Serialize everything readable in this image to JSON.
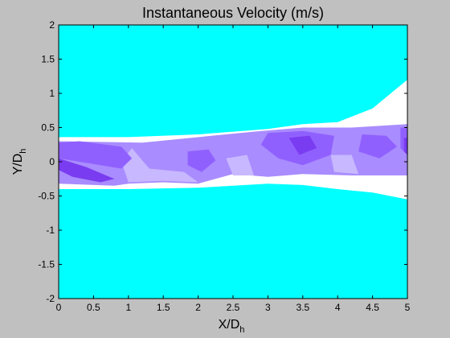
{
  "chart_data": {
    "type": "heatmap",
    "title": "Instantaneous Velocity (m/s)",
    "xlabel": {
      "main": "X/D",
      "sub": "h"
    },
    "ylabel": {
      "main": "Y/D",
      "sub": "h"
    },
    "xlim": [
      0,
      5
    ],
    "ylim": [
      -2,
      2
    ],
    "xticks": [
      0,
      0.5,
      1,
      1.5,
      2,
      2.5,
      3,
      3.5,
      4,
      4.5,
      5
    ],
    "xtick_labels": [
      "0",
      "0.5",
      "1",
      "1.5",
      "2",
      "2.5",
      "3",
      "3.5",
      "4",
      "4.5",
      "5"
    ],
    "yticks": [
      -2,
      -1.5,
      -1,
      -0.5,
      0,
      0.5,
      1,
      1.5,
      2
    ],
    "ytick_labels": [
      "-2",
      "-1.5",
      "-1",
      "-0.5",
      "0",
      "0.5",
      "1",
      "1.5",
      "2"
    ],
    "grid": false,
    "colorbar": false,
    "colors": {
      "background": "#00ffff",
      "jet_edge": "#ffffff",
      "light_lavender": "#c8b8ff",
      "lavender": "#a98cff",
      "violet": "#9060ff",
      "deep_violet": "#7a3cf0",
      "figure_bg": "#c0c0c0"
    },
    "regions": {
      "jet_upper_edge": [
        [
          0,
          0.36
        ],
        [
          1,
          0.36
        ],
        [
          2,
          0.4
        ],
        [
          3,
          0.48
        ],
        [
          3.5,
          0.55
        ],
        [
          4,
          0.58
        ],
        [
          4.5,
          0.78
        ],
        [
          5,
          1.2
        ]
      ],
      "jet_lower_edge": [
        [
          5,
          -0.55
        ],
        [
          4.5,
          -0.45
        ],
        [
          4,
          -0.4
        ],
        [
          3.5,
          -0.34
        ],
        [
          3,
          -0.32
        ],
        [
          2,
          -0.38
        ],
        [
          1,
          -0.4
        ],
        [
          0,
          -0.4
        ]
      ],
      "core_upper_edge": [
        [
          0,
          0.3
        ],
        [
          1.2,
          0.28
        ],
        [
          2.8,
          0.44
        ],
        [
          3.5,
          0.5
        ],
        [
          4.2,
          0.5
        ],
        [
          5,
          0.55
        ]
      ],
      "core_lower_edge": [
        [
          5,
          -0.2
        ],
        [
          4.2,
          -0.2
        ],
        [
          3.5,
          -0.18
        ],
        [
          3,
          -0.22
        ],
        [
          2.5,
          -0.18
        ],
        [
          2,
          -0.32
        ],
        [
          1.5,
          -0.3
        ],
        [
          1,
          -0.32
        ],
        [
          0.8,
          -0.35
        ],
        [
          0,
          -0.32
        ]
      ],
      "violet_patches": [
        [
          [
            0,
            0.28
          ],
          [
            0.3,
            0.3
          ],
          [
            0.9,
            0.22
          ],
          [
            1.05,
            0.05
          ],
          [
            0.9,
            -0.1
          ],
          [
            0.6,
            -0.05
          ],
          [
            0.3,
            0.0
          ],
          [
            0,
            0.05
          ]
        ],
        [
          [
            1.85,
            0.15
          ],
          [
            2.15,
            0.18
          ],
          [
            2.25,
            0.02
          ],
          [
            2.05,
            -0.15
          ],
          [
            1.85,
            -0.05
          ]
        ],
        [
          [
            3.0,
            0.42
          ],
          [
            3.5,
            0.45
          ],
          [
            3.95,
            0.38
          ],
          [
            3.9,
            0.1
          ],
          [
            3.5,
            -0.05
          ],
          [
            3.15,
            0.05
          ],
          [
            2.9,
            0.25
          ]
        ],
        [
          [
            4.35,
            0.4
          ],
          [
            4.7,
            0.38
          ],
          [
            4.85,
            0.22
          ],
          [
            4.6,
            0.05
          ],
          [
            4.3,
            0.15
          ]
        ],
        [
          [
            4.9,
            0.5
          ],
          [
            5,
            0.5
          ],
          [
            5,
            0.1
          ],
          [
            4.9,
            0.2
          ]
        ]
      ],
      "deep_violet_patches": [
        [
          [
            0,
            0.05
          ],
          [
            0.4,
            -0.08
          ],
          [
            0.8,
            -0.25
          ],
          [
            0.6,
            -0.3
          ],
          [
            0.2,
            -0.22
          ],
          [
            0,
            -0.12
          ]
        ],
        [
          [
            3.3,
            0.35
          ],
          [
            3.6,
            0.38
          ],
          [
            3.7,
            0.2
          ],
          [
            3.45,
            0.1
          ]
        ],
        [
          [
            4.95,
            0.35
          ],
          [
            5,
            0.35
          ],
          [
            5,
            0.1
          ],
          [
            4.95,
            0.15
          ]
        ]
      ],
      "light_lavender_patches": [
        [
          [
            1.05,
            0.2
          ],
          [
            1.3,
            -0.1
          ],
          [
            1.8,
            -0.15
          ],
          [
            2.0,
            -0.3
          ],
          [
            1.5,
            -0.28
          ],
          [
            1.0,
            -0.3
          ],
          [
            0.9,
            0.0
          ]
        ],
        [
          [
            2.4,
            0.05
          ],
          [
            2.7,
            0.1
          ],
          [
            2.8,
            -0.2
          ],
          [
            2.5,
            -0.2
          ]
        ],
        [
          [
            3.9,
            0.1
          ],
          [
            4.2,
            0.1
          ],
          [
            4.3,
            -0.18
          ],
          [
            3.95,
            -0.15
          ]
        ]
      ]
    }
  }
}
